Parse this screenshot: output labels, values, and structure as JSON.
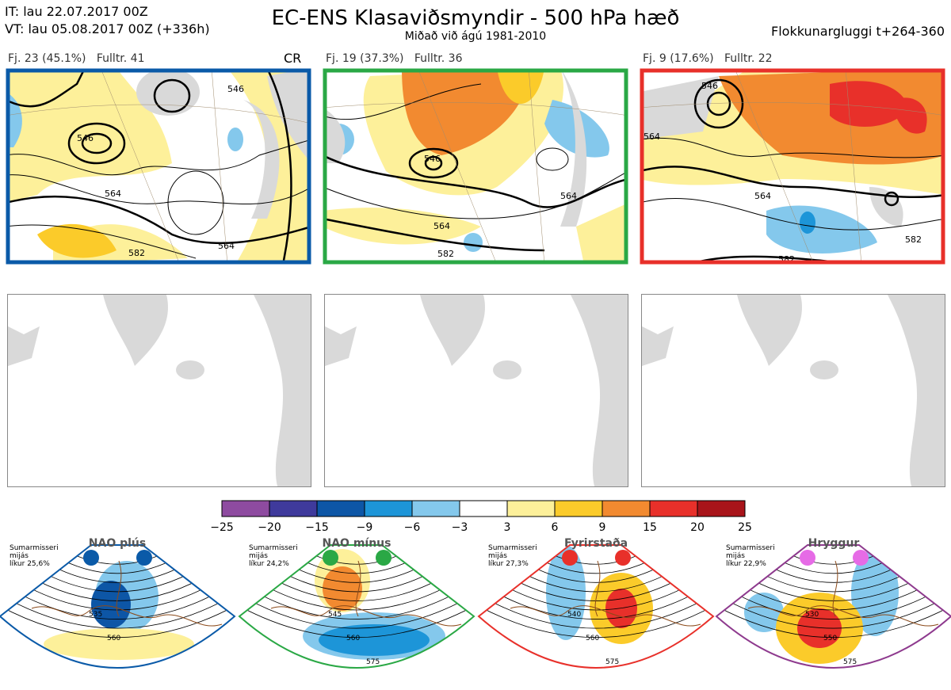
{
  "header": {
    "it": "IT: lau 22.07.2017 00Z",
    "vt": "VT: lau 05.08.2017 00Z  (+336h)",
    "title": "EC-ENS Klasaviðsmyndir - 500 hPa hæð",
    "subtitle": "Miðað við ágú 1981-2010",
    "window": "Flokkunargluggi t+264-360"
  },
  "clusters": [
    {
      "label": "Fj. 23 (45.1%)",
      "rep": "Fulltr. 41",
      "tag": "CR",
      "color": "#0a5aa8",
      "contours": [
        "546",
        "564",
        "582",
        "546",
        "564"
      ]
    },
    {
      "label": "Fj. 19 (37.3%)",
      "rep": "Fulltr. 36",
      "tag": "",
      "color": "#2aa845",
      "contours": [
        "546",
        "564",
        "582",
        "564"
      ]
    },
    {
      "label": "Fj. 9 (17.6%)",
      "rep": "Fulltr. 22",
      "tag": "",
      "color": "#e8302a",
      "contours": [
        "546",
        "564",
        "564",
        "582",
        "582"
      ]
    }
  ],
  "colorbar": {
    "ticks": [
      "−25",
      "−20",
      "−15",
      "−9",
      "−6",
      "−3",
      "3",
      "6",
      "9",
      "15",
      "20",
      "25"
    ],
    "colors": [
      "#8e4ba0",
      "#3f3a9c",
      "#0d56a6",
      "#1d95d8",
      "#84c8ec",
      "#ffffff",
      "#fdf09a",
      "#fbcb2a",
      "#f28a30",
      "#e8302a",
      "#a8141a"
    ]
  },
  "regimes": [
    {
      "name": "NAO plús",
      "season": "Sumarmisseri",
      "freq": "mijás",
      "prob": "líkur 25,6%",
      "color": "#0a5aa8",
      "dot": "#0a5aa8",
      "contours": [
        "535",
        "560"
      ]
    },
    {
      "name": "NAO mínus",
      "season": "Sumarmisseri",
      "freq": "mijás",
      "prob": "líkur 24,2%",
      "color": "#2aa845",
      "dot": "#2aa845",
      "contours": [
        "545",
        "560",
        "575"
      ]
    },
    {
      "name": "Fyrirstaða",
      "season": "Sumarmisseri",
      "freq": "mijás",
      "prob": "líkur 27,3%",
      "color": "#e8302a",
      "dot": "#e8302a",
      "contours": [
        "540",
        "560",
        "575"
      ]
    },
    {
      "name": "Hryggur",
      "season": "Sumarmisseri",
      "freq": "mijás",
      "prob": "líkur 22,9%",
      "color": "#8e3a8e",
      "dot": "#e66be6",
      "contours": [
        "530",
        "550",
        "575"
      ]
    }
  ]
}
